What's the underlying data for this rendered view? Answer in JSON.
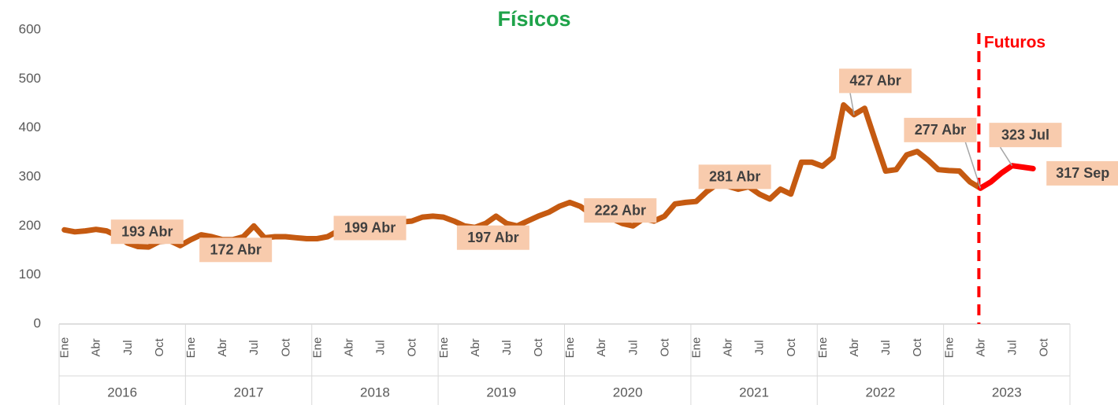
{
  "chart_data": {
    "type": "line",
    "categories": [
      "Ene",
      null,
      null,
      "Abr",
      null,
      null,
      "Jul",
      null,
      null,
      "Oct",
      null,
      null,
      "Ene",
      null,
      null,
      "Abr",
      null,
      null,
      "Jul",
      null,
      null,
      "Oct",
      null,
      null,
      "Ene",
      null,
      null,
      "Abr",
      null,
      null,
      "Jul",
      null,
      null,
      "Oct",
      null,
      null,
      "Ene",
      null,
      null,
      "Abr",
      null,
      null,
      "Jul",
      null,
      null,
      "Oct",
      null,
      null,
      "Ene",
      null,
      null,
      "Abr",
      null,
      null,
      "Jul",
      null,
      null,
      "Oct",
      null,
      null,
      "Ene",
      null,
      null,
      "Abr",
      null,
      null,
      "Jul",
      null,
      null,
      "Oct",
      null,
      null,
      "Ene",
      null,
      null,
      "Abr",
      null,
      null,
      "Jul",
      null,
      null,
      "Oct",
      null,
      null,
      "Ene",
      null,
      null,
      "Abr",
      null,
      null,
      "Jul",
      null,
      null,
      "Oct",
      null,
      null
    ],
    "year_groups": [
      "2016",
      "2017",
      "2018",
      "2019",
      "2020",
      "2021",
      "2022",
      "2023"
    ],
    "series": [
      {
        "name": "Físicos",
        "color": "#c55a11",
        "values": [
          192,
          188,
          190,
          193,
          190,
          180,
          165,
          158,
          157,
          168,
          170,
          160,
          172,
          182,
          178,
          172,
          172,
          178,
          200,
          176,
          178,
          178,
          176,
          174,
          174,
          178,
          190,
          199,
          200,
          198,
          200,
          205,
          208,
          210,
          218,
          220,
          218,
          210,
          200,
          197,
          205,
          220,
          205,
          200,
          210,
          220,
          228,
          240,
          248,
          240,
          225,
          222,
          215,
          205,
          200,
          215,
          210,
          220,
          245,
          248,
          250,
          270,
          285,
          281,
          275,
          280,
          265,
          255,
          275,
          265,
          330,
          330,
          322,
          340,
          447,
          427,
          440,
          375,
          312,
          315,
          345,
          352,
          335,
          315,
          313,
          312,
          290,
          277,
          null,
          null,
          null,
          null,
          null,
          null,
          null,
          null
        ],
        "value_labels": [
          null,
          null,
          null,
          "193 Abr",
          null,
          null,
          null,
          null,
          null,
          null,
          null,
          null,
          null,
          null,
          null,
          "172 Abr",
          null,
          null,
          null,
          null,
          null,
          null,
          null,
          null,
          null,
          null,
          null,
          "199 Abr",
          null,
          null,
          null,
          null,
          null,
          null,
          null,
          null,
          null,
          null,
          null,
          "197 Abr",
          null,
          null,
          null,
          null,
          null,
          null,
          null,
          null,
          null,
          null,
          null,
          "222 Abr",
          null,
          null,
          null,
          null,
          null,
          null,
          null,
          null,
          null,
          null,
          null,
          "281 Abr",
          null,
          null,
          null,
          null,
          null,
          null,
          null,
          null,
          null,
          null,
          null,
          "427 Abr",
          null,
          null,
          null,
          null,
          null,
          null,
          null,
          null,
          null,
          null,
          null,
          "277 Abr",
          null,
          null,
          null,
          null,
          null,
          null,
          null,
          null
        ]
      },
      {
        "name": "Futuros",
        "color": "#ff0000",
        "values": [
          null,
          null,
          null,
          null,
          null,
          null,
          null,
          null,
          null,
          null,
          null,
          null,
          null,
          null,
          null,
          null,
          null,
          null,
          null,
          null,
          null,
          null,
          null,
          null,
          null,
          null,
          null,
          null,
          null,
          null,
          null,
          null,
          null,
          null,
          null,
          null,
          null,
          null,
          null,
          null,
          null,
          null,
          null,
          null,
          null,
          null,
          null,
          null,
          null,
          null,
          null,
          null,
          null,
          null,
          null,
          null,
          null,
          null,
          null,
          null,
          null,
          null,
          null,
          null,
          null,
          null,
          null,
          null,
          null,
          null,
          null,
          null,
          null,
          null,
          null,
          null,
          null,
          null,
          null,
          null,
          null,
          null,
          null,
          null,
          null,
          null,
          null,
          277,
          290,
          308,
          323,
          320,
          317,
          null,
          null,
          null
        ],
        "value_labels": [
          null,
          null,
          null,
          null,
          null,
          null,
          null,
          null,
          null,
          null,
          null,
          null,
          null,
          null,
          null,
          null,
          null,
          null,
          null,
          null,
          null,
          null,
          null,
          null,
          null,
          null,
          null,
          null,
          null,
          null,
          null,
          null,
          null,
          null,
          null,
          null,
          null,
          null,
          null,
          null,
          null,
          null,
          null,
          null,
          null,
          null,
          null,
          null,
          null,
          null,
          null,
          null,
          null,
          null,
          null,
          null,
          null,
          null,
          null,
          null,
          null,
          null,
          null,
          null,
          null,
          null,
          null,
          null,
          null,
          null,
          null,
          null,
          null,
          null,
          null,
          null,
          null,
          null,
          null,
          null,
          null,
          null,
          null,
          null,
          null,
          null,
          null,
          null,
          null,
          null,
          "323 Jul",
          null,
          "317 Sep",
          null,
          null,
          null
        ]
      }
    ],
    "ylim": [
      0,
      600
    ],
    "yticks": [
      0,
      100,
      200,
      300,
      400,
      500,
      600
    ],
    "grid": false
  }
}
